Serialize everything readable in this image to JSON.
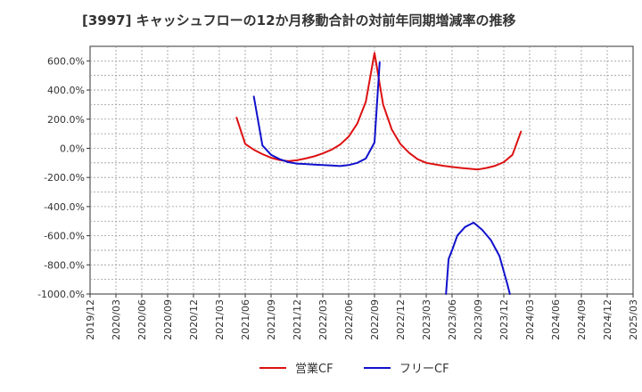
{
  "chart_data": {
    "type": "line",
    "title": "[3997]  キャッシュフローの12か月移動合計の対前年同期増減率の推移",
    "xlabel": "",
    "ylabel": "",
    "ylim": [
      -1000,
      700
    ],
    "y_ticks": [
      -1000,
      -800,
      -600,
      -400,
      -200,
      0,
      200,
      400,
      600
    ],
    "y_tick_labels": [
      "-1000.0%",
      "-800.0%",
      "-600.0%",
      "-400.0%",
      "-200.0%",
      "0.0%",
      "200.0%",
      "400.0%",
      "600.0%"
    ],
    "x_tick_labels": [
      "2019/12",
      "2020/03",
      "2020/06",
      "2020/09",
      "2020/12",
      "2021/03",
      "2021/06",
      "2021/09",
      "2021/12",
      "2022/03",
      "2022/06",
      "2022/09",
      "2022/12",
      "2023/03",
      "2023/06",
      "2023/09",
      "2023/12",
      "2024/03",
      "2024/06",
      "2024/09",
      "2024/12",
      "2025/03"
    ],
    "grid": true,
    "legend_position": "bottom",
    "series": [
      {
        "name": "営業CF",
        "color": "#dd1111",
        "points": [
          [
            17,
            210
          ],
          [
            18,
            30
          ],
          [
            19,
            -10
          ],
          [
            20,
            -40
          ],
          [
            21,
            -65
          ],
          [
            22,
            -80
          ],
          [
            23,
            -88
          ],
          [
            24,
            -82
          ],
          [
            25,
            -70
          ],
          [
            26,
            -55
          ],
          [
            27,
            -35
          ],
          [
            28,
            -10
          ],
          [
            29,
            25
          ],
          [
            30,
            80
          ],
          [
            31,
            170
          ],
          [
            32,
            320
          ],
          [
            33,
            655
          ],
          [
            34,
            300
          ],
          [
            35,
            130
          ],
          [
            36,
            30
          ],
          [
            37,
            -30
          ],
          [
            38,
            -75
          ],
          [
            39,
            -100
          ],
          [
            40,
            -110
          ],
          [
            41,
            -120
          ],
          [
            42,
            -128
          ],
          [
            43,
            -135
          ],
          [
            44,
            -140
          ],
          [
            45,
            -145
          ],
          [
            46,
            -135
          ],
          [
            47,
            -120
          ],
          [
            48,
            -95
          ],
          [
            49,
            -45
          ],
          [
            50,
            115
          ]
        ]
      },
      {
        "name": "フリーCF",
        "color": "#1111cc",
        "points": [
          [
            19,
            355
          ],
          [
            20,
            20
          ],
          [
            21,
            -45
          ],
          [
            22,
            -75
          ],
          [
            23,
            -95
          ],
          [
            24,
            -105
          ],
          [
            25,
            -108
          ],
          [
            26,
            -112
          ],
          [
            27,
            -115
          ],
          [
            28,
            -118
          ],
          [
            29,
            -122
          ],
          [
            30,
            -115
          ],
          [
            31,
            -100
          ],
          [
            32,
            -70
          ],
          [
            33,
            40
          ],
          [
            33.6,
            590
          ]
        ]
      },
      {
        "name": "フリーCF (2023/09-2024/06)",
        "legend": false,
        "color": "#1111cc",
        "points": [
          [
            41.3,
            -1000
          ],
          [
            41.6,
            -760
          ],
          [
            42,
            -700
          ],
          [
            42.6,
            -600
          ],
          [
            43.5,
            -540
          ],
          [
            44.5,
            -510
          ],
          [
            45.5,
            -560
          ],
          [
            46.5,
            -630
          ],
          [
            47.5,
            -740
          ],
          [
            48.4,
            -930
          ],
          [
            48.7,
            -1000
          ]
        ]
      }
    ]
  }
}
